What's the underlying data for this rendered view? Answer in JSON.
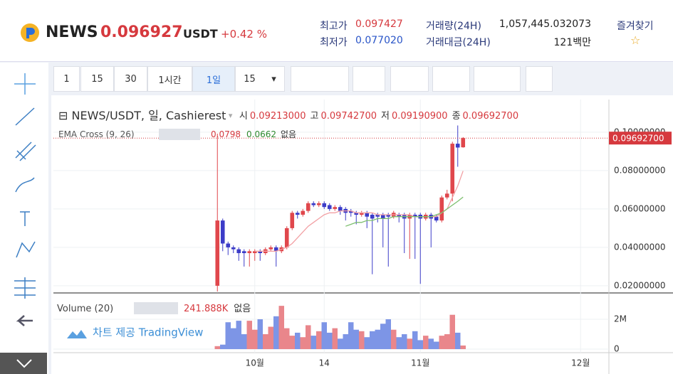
{
  "header": {
    "symbol": "NEWS",
    "price": "0.096927",
    "quote": "USDT",
    "change": "+0.42 %",
    "stats": [
      {
        "label": "최고가",
        "value": "0.097427"
      },
      {
        "label": "최저가",
        "value": "0.077020"
      },
      {
        "label": "거래량(24H)",
        "value": "1,057,445.032073"
      },
      {
        "label": "거래대금(24H)",
        "value": "121백만"
      }
    ],
    "favorite": "즐겨찾기",
    "star": "☆"
  },
  "toolbar": {
    "intervals": [
      "1",
      "15",
      "30",
      "1시간",
      "1일",
      "15"
    ],
    "active": 4
  },
  "chart_data": [
    {
      "type": "candlestick",
      "title": "NEWS/USDT, 일, Cashierest",
      "legend": [
        {
          "label": "시",
          "value": "0.09213000"
        },
        {
          "label": "고",
          "value": "0.09742700"
        },
        {
          "label": "저",
          "value": "0.09190900"
        },
        {
          "label": "종",
          "value": "0.09692700"
        }
      ],
      "x": [
        -7,
        -6,
        -5,
        -4,
        -3,
        -2,
        -1,
        0,
        1,
        2,
        3,
        4,
        5,
        6,
        7,
        8,
        9,
        10,
        11,
        12,
        13,
        14,
        15,
        16,
        17,
        18,
        19,
        20,
        21,
        22,
        23,
        24,
        25,
        26,
        27,
        28,
        29,
        30,
        31,
        32,
        33,
        34,
        35,
        36,
        37,
        38,
        39
      ],
      "open": [
        0.02,
        0.054,
        0.042,
        0.04,
        0.039,
        0.038,
        0.037,
        0.037,
        0.038,
        0.037,
        0.039,
        0.04,
        0.038,
        0.04,
        0.05,
        0.058,
        0.057,
        0.059,
        0.063,
        0.062,
        0.063,
        0.062,
        0.06,
        0.061,
        0.06,
        0.059,
        0.058,
        0.057,
        0.058,
        0.057,
        0.057,
        0.057,
        0.057,
        0.056,
        0.057,
        0.057,
        0.055,
        0.057,
        0.057,
        0.055,
        0.057,
        0.056,
        0.054,
        0.066,
        0.068,
        0.094,
        0.09213
      ],
      "high": [
        0.0992,
        0.055,
        0.043,
        0.041,
        0.04,
        0.039,
        0.039,
        0.039,
        0.039,
        0.04,
        0.041,
        0.041,
        0.041,
        0.051,
        0.059,
        0.059,
        0.06,
        0.064,
        0.064,
        0.064,
        0.064,
        0.063,
        0.062,
        0.062,
        0.061,
        0.06,
        0.059,
        0.059,
        0.059,
        0.058,
        0.058,
        0.058,
        0.058,
        0.059,
        0.058,
        0.058,
        0.058,
        0.058,
        0.058,
        0.058,
        0.058,
        0.057,
        0.067,
        0.07,
        0.095,
        0.1035,
        0.097427
      ],
      "low": [
        0.017,
        0.038,
        0.036,
        0.037,
        0.033,
        0.03,
        0.03,
        0.033,
        0.033,
        0.036,
        0.038,
        0.03,
        0.037,
        0.039,
        0.049,
        0.055,
        0.056,
        0.058,
        0.061,
        0.061,
        0.06,
        0.059,
        0.059,
        0.057,
        0.054,
        0.056,
        0.052,
        0.056,
        0.05,
        0.026,
        0.053,
        0.04,
        0.03,
        0.055,
        0.053,
        0.037,
        0.034,
        0.034,
        0.021,
        0.054,
        0.04,
        0.053,
        0.053,
        0.065,
        0.064,
        0.082,
        0.091909
      ],
      "close": [
        0.054,
        0.042,
        0.04,
        0.039,
        0.037,
        0.037,
        0.038,
        0.038,
        0.037,
        0.039,
        0.04,
        0.038,
        0.04,
        0.05,
        0.058,
        0.057,
        0.059,
        0.063,
        0.062,
        0.063,
        0.061,
        0.06,
        0.061,
        0.059,
        0.058,
        0.058,
        0.057,
        0.058,
        0.056,
        0.055,
        0.056,
        0.055,
        0.056,
        0.058,
        0.056,
        0.055,
        0.057,
        0.056,
        0.055,
        0.057,
        0.055,
        0.054,
        0.066,
        0.068,
        0.094,
        0.092,
        0.096927
      ],
      "up_color": "#e0474c",
      "down_color": "#3c3cc8",
      "indicator": "EMA Cross (9, 26)",
      "indicator_note": "없음",
      "series": [
        {
          "color": "#f2a0a4",
          "values": [
            null,
            null,
            null,
            null,
            null,
            null,
            null,
            0.038,
            0.038,
            0.038,
            0.038,
            0.038,
            0.039,
            0.04,
            0.042,
            0.045,
            0.048,
            0.051,
            0.053,
            0.055,
            0.057,
            0.058,
            0.058,
            0.059,
            0.059,
            0.059,
            0.058,
            0.058,
            0.058,
            0.058,
            0.057,
            0.057,
            0.057,
            0.057,
            0.057,
            0.057,
            0.057,
            0.056,
            0.056,
            0.056,
            0.056,
            0.056,
            0.058,
            0.06,
            0.066,
            0.072,
            0.0798
          ]
        },
        {
          "color": "#7cbf6e",
          "values": [
            null,
            null,
            null,
            null,
            null,
            null,
            null,
            null,
            null,
            null,
            null,
            null,
            null,
            null,
            null,
            null,
            null,
            null,
            null,
            null,
            null,
            null,
            null,
            null,
            0.051,
            0.052,
            0.053,
            0.053,
            0.054,
            0.054,
            0.055,
            0.055,
            0.055,
            0.056,
            0.056,
            0.056,
            0.056,
            0.056,
            0.056,
            0.056,
            0.056,
            0.057,
            0.058,
            0.06,
            0.062,
            0.064,
            0.0662
          ]
        }
      ],
      "xlim": [
        -37.7,
        66.3
      ],
      "xticks": [
        {
          "value": 0,
          "label": "10월"
        },
        {
          "value": 13,
          "label": "14"
        },
        {
          "value": 31,
          "label": "11월"
        },
        {
          "value": 61,
          "label": "12월"
        }
      ],
      "ylim": [
        0.017,
        0.117
      ],
      "yticks": [
        {
          "value": 0.02,
          "label": "0.02000000"
        },
        {
          "value": 0.04,
          "label": "0.04000000"
        },
        {
          "value": 0.06,
          "label": "0.06000000"
        },
        {
          "value": 0.08,
          "label": "0.08000000"
        },
        {
          "value": 0.1,
          "label": "0.10000000"
        }
      ],
      "grid": true
    },
    {
      "type": "bar",
      "title": "Volume (20)",
      "note": "없음",
      "last_value_label": "241.888K",
      "values": [
        200000,
        300000,
        1800000,
        1400000,
        1900000,
        1000000,
        1900000,
        1300000,
        2000000,
        1000000,
        1500000,
        2200000,
        2900000,
        1400000,
        900000,
        1100000,
        800000,
        1600000,
        900000,
        1200000,
        1800000,
        1100000,
        1400000,
        700000,
        1000000,
        1800000,
        1300000,
        1200000,
        800000,
        1200000,
        1300000,
        1700000,
        2000000,
        1300000,
        800000,
        1000000,
        700000,
        1200000,
        600000,
        900000,
        700000,
        500000,
        900000,
        1000000,
        2300000,
        1100000,
        241888
      ],
      "up_color": "#e9868b",
      "down_color": "#7d95e6",
      "ylim": [
        -190000,
        3620000
      ],
      "yticks": [
        0,
        {
          "value": 2000000,
          "label": "2M"
        }
      ],
      "credit": "차트 제공 TradingView"
    }
  ]
}
